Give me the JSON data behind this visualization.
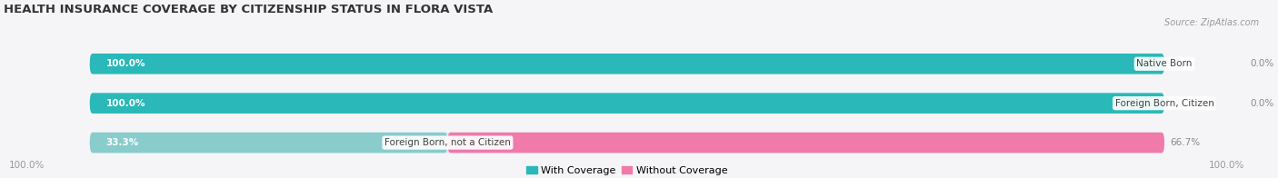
{
  "title": "HEALTH INSURANCE COVERAGE BY CITIZENSHIP STATUS IN FLORA VISTA",
  "source": "Source: ZipAtlas.com",
  "categories": [
    "Native Born",
    "Foreign Born, Citizen",
    "Foreign Born, not a Citizen"
  ],
  "with_coverage": [
    100.0,
    100.0,
    33.3
  ],
  "without_coverage": [
    0.0,
    0.0,
    66.7
  ],
  "color_with": "#2ab8b8",
  "color_without": "#f07aaa",
  "color_with_light": "#88cccc",
  "color_without_light": "#f5aac8",
  "bar_bg": "#e8e8ec",
  "title_fontsize": 9.5,
  "label_fontsize": 7.5,
  "tick_fontsize": 7.5,
  "legend_fontsize": 8,
  "source_fontsize": 7,
  "background_color": "#f5f5f8"
}
